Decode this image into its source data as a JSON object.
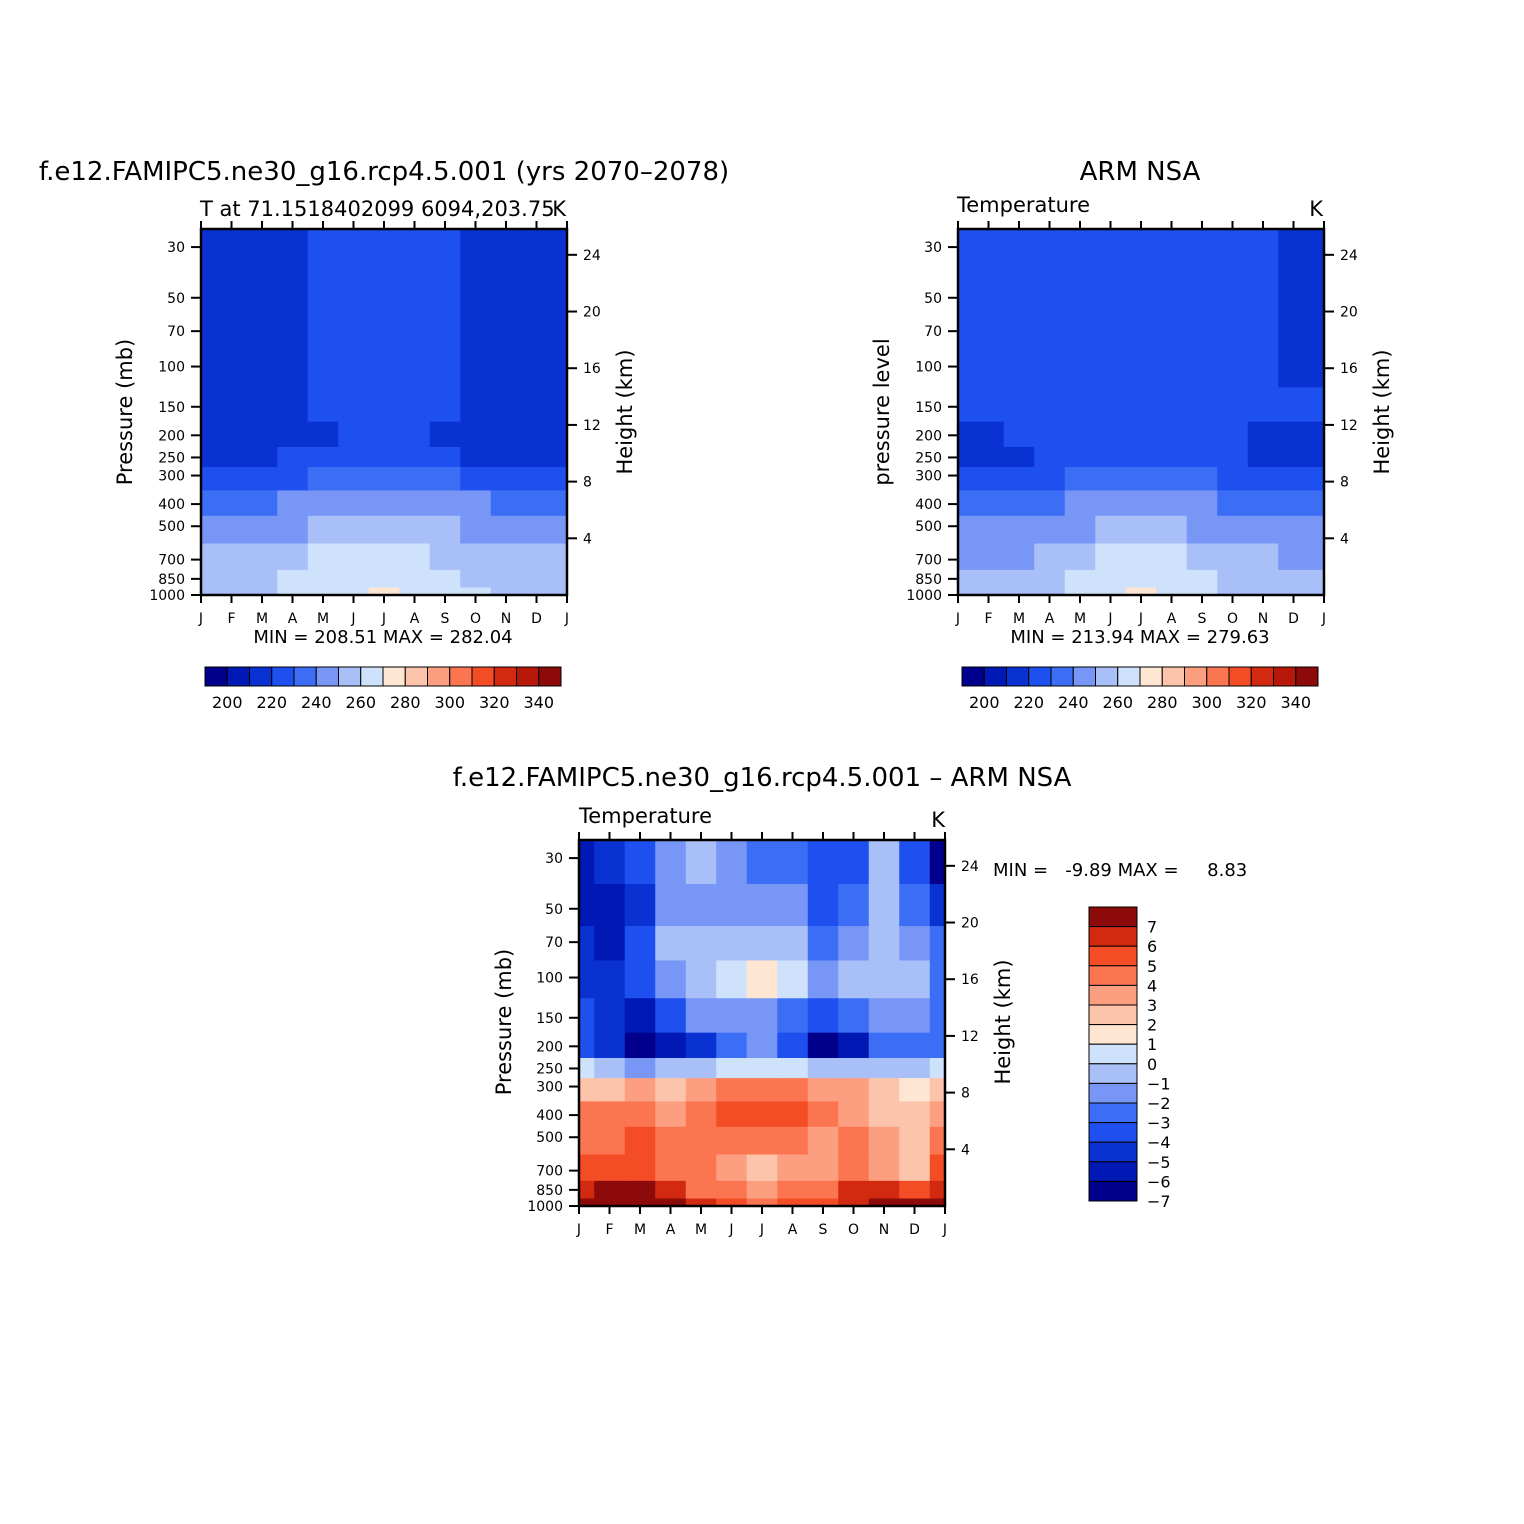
{
  "palette": {
    "temperature": [
      "#00008c",
      "#0018b4",
      "#0a32d2",
      "#1e50f0",
      "#3c6ef5",
      "#7896f5",
      "#a8bff8",
      "#cfe2fb",
      "#ffe6d2",
      "#fcc4aa",
      "#fc9f80",
      "#fb7550",
      "#f44d26",
      "#d22a10",
      "#b8180a",
      "#8c0a0a"
    ],
    "difference": [
      "#00008c",
      "#0018b4",
      "#0a32d2",
      "#1e50f0",
      "#3c6ef5",
      "#7896f5",
      "#a8bff8",
      "#cfe2fb",
      "#ffe6d2",
      "#fcc4aa",
      "#fc9f80",
      "#fb7550",
      "#f44d26",
      "#d22a10",
      "#8c0a0a"
    ]
  },
  "chart_data": [
    {
      "type": "heatmap",
      "title": "f.e12.FAMIPC5.ne30_g16.rcp4.5.001 (yrs 2070–2078)",
      "subtitle": "T at 71.1518402099 6094,203.75",
      "units": "K",
      "ylabel": "Pressure (mb)",
      "ylabel_right": "Height (km)",
      "stats_text": "MIN = 208.51 MAX = 282.04",
      "x_labels": [
        "J",
        "F",
        "M",
        "A",
        "M",
        "J",
        "J",
        "A",
        "S",
        "O",
        "N",
        "D",
        "J"
      ],
      "y_levels": [
        1000,
        850,
        700,
        500,
        400,
        300,
        250,
        200,
        150,
        100,
        70,
        50,
        30
      ],
      "y_labels": [
        "1000",
        "850",
        "700",
        "500",
        "400",
        "300",
        "250",
        "200",
        "150",
        "100",
        "70",
        "50",
        "30"
      ],
      "height_ticks": [
        "4",
        "8",
        "12",
        "16",
        "20",
        "24"
      ],
      "colorbar_labels": [
        "200",
        "220",
        "240",
        "260",
        "280",
        "300",
        "320",
        "340"
      ],
      "grid": [
        [
          257,
          258,
          259,
          262,
          266,
          268,
          270,
          268,
          264,
          260,
          258,
          257,
          257
        ],
        [
          255,
          256,
          258,
          262,
          265,
          268,
          269,
          267,
          263,
          259,
          256,
          255,
          255
        ],
        [
          251,
          252,
          254,
          258,
          261,
          263,
          264,
          262,
          259,
          255,
          252,
          251,
          251
        ],
        [
          243,
          244,
          245,
          248,
          251,
          253,
          254,
          253,
          250,
          247,
          244,
          243,
          243
        ],
        [
          236,
          237,
          238,
          240,
          242,
          245,
          246,
          245,
          243,
          240,
          238,
          237,
          236
        ],
        [
          226,
          227,
          228,
          229,
          231,
          232,
          233,
          232,
          231,
          229,
          228,
          227,
          226
        ],
        [
          219,
          219,
          219,
          220,
          222,
          224,
          226,
          224,
          221,
          219,
          219,
          219,
          219
        ],
        [
          216,
          216,
          216,
          217,
          219,
          222,
          224,
          222,
          219,
          217,
          216,
          216,
          216
        ],
        [
          216,
          216,
          216,
          218,
          222,
          225,
          226,
          225,
          221,
          217,
          216,
          216,
          216
        ],
        [
          217,
          217,
          217,
          219,
          224,
          225,
          226,
          225,
          224,
          219,
          217,
          217,
          217
        ],
        [
          217,
          217,
          217,
          219,
          224,
          225,
          226,
          225,
          223,
          219,
          217,
          217,
          216
        ],
        [
          217,
          217,
          217,
          219,
          224,
          225,
          226,
          225,
          222,
          218,
          217,
          216,
          215
        ],
        [
          217,
          217,
          217,
          219,
          223,
          224,
          224,
          223,
          222,
          219,
          217,
          215,
          212
        ]
      ]
    },
    {
      "type": "heatmap",
      "title": "ARM NSA",
      "subtitle": "Temperature",
      "units": "K",
      "ylabel": "pressure level",
      "ylabel_right": "Height (km)",
      "stats_text": "MIN = 213.94 MAX = 279.63",
      "x_labels": [
        "J",
        "F",
        "M",
        "A",
        "M",
        "J",
        "J",
        "A",
        "S",
        "O",
        "N",
        "D",
        "J"
      ],
      "y_levels": [
        1000,
        850,
        700,
        500,
        400,
        300,
        250,
        200,
        150,
        100,
        70,
        50,
        30
      ],
      "y_labels": [
        "1000",
        "850",
        "700",
        "500",
        "400",
        "300",
        "250",
        "200",
        "150",
        "100",
        "70",
        "50",
        "30"
      ],
      "height_ticks": [
        "4",
        "8",
        "12",
        "16",
        "20",
        "24"
      ],
      "colorbar_labels": [
        "200",
        "220",
        "240",
        "260",
        "280",
        "300",
        "320",
        "340"
      ],
      "grid": [
        [
          252,
          252,
          253,
          256,
          262,
          268,
          270,
          268,
          264,
          258,
          254,
          252,
          252
        ],
        [
          250,
          250,
          252,
          256,
          261,
          266,
          268,
          266,
          262,
          257,
          253,
          251,
          250
        ],
        [
          247,
          247,
          249,
          253,
          257,
          261,
          262,
          261,
          258,
          254,
          250,
          248,
          247
        ],
        [
          240,
          240,
          241,
          245,
          248,
          251,
          252,
          251,
          249,
          245,
          242,
          240,
          240
        ],
        [
          234,
          234,
          235,
          238,
          241,
          244,
          245,
          244,
          241,
          238,
          236,
          234,
          234
        ],
        [
          225,
          225,
          226,
          228,
          230,
          232,
          233,
          232,
          230,
          228,
          226,
          225,
          225
        ],
        [
          219,
          218,
          219,
          221,
          224,
          226,
          227,
          226,
          223,
          221,
          219,
          219,
          219
        ],
        [
          219,
          219,
          221,
          223,
          225,
          227,
          227,
          227,
          225,
          221,
          219,
          219,
          219
        ],
        [
          221,
          222,
          223,
          224,
          225,
          226,
          226,
          226,
          224,
          221,
          220,
          220,
          220
        ],
        [
          222,
          223,
          224,
          225,
          226,
          227,
          227,
          226,
          224,
          221,
          220,
          219,
          219
        ],
        [
          223,
          224,
          225,
          226,
          227,
          228,
          228,
          227,
          225,
          222,
          220,
          219,
          219
        ],
        [
          224,
          225,
          226,
          227,
          228,
          229,
          229,
          228,
          226,
          222,
          220,
          219,
          219
        ],
        [
          225,
          225,
          226,
          227,
          228,
          229,
          229,
          229,
          227,
          223,
          220,
          219,
          218
        ]
      ]
    },
    {
      "type": "heatmap",
      "title": "f.e12.FAMIPC5.ne30_g16.rcp4.5.001 – ARM NSA",
      "subtitle": "Temperature",
      "units": "K",
      "ylabel": "Pressure (mb)",
      "ylabel_right": "Height (km)",
      "stats_text": "MIN =   -9.89 MAX =     8.83",
      "x_labels": [
        "J",
        "F",
        "M",
        "A",
        "M",
        "J",
        "J",
        "A",
        "S",
        "O",
        "N",
        "D",
        "J"
      ],
      "y_levels": [
        1000,
        850,
        700,
        500,
        400,
        300,
        250,
        200,
        150,
        100,
        70,
        50,
        30
      ],
      "y_labels": [
        "1000",
        "850",
        "700",
        "500",
        "400",
        "300",
        "250",
        "200",
        "150",
        "100",
        "70",
        "50",
        "30"
      ],
      "height_ticks": [
        "4",
        "8",
        "12",
        "16",
        "20",
        "24"
      ],
      "colorbar_labels": [
        "7",
        "6",
        "5",
        "4",
        "3",
        "2",
        "1",
        "0",
        "−1",
        "−2",
        "−3",
        "−4",
        "−5",
        "−6",
        "−7"
      ],
      "grid": [
        [
          5.5,
          6.5,
          7.5,
          5.5,
          4.5,
          3.5,
          3.2,
          3.5,
          4.0,
          5.0,
          7.5,
          8.5,
          6.0
        ],
        [
          5.0,
          5.5,
          6.5,
          4.5,
          3.0,
          2.5,
          2.0,
          2.5,
          3.0,
          4.5,
          5.0,
          3.5,
          5.0
        ],
        [
          4.0,
          3.8,
          4.0,
          2.5,
          2.5,
          1.5,
          1.0,
          1.5,
          2.0,
          3.0,
          2.0,
          0.5,
          3.5
        ],
        [
          3.0,
          3.0,
          3.5,
          2.5,
          2.5,
          2.5,
          2.5,
          2.5,
          2.0,
          2.5,
          1.5,
          0.5,
          2.5
        ],
        [
          2.5,
          2.5,
          2.5,
          1.5,
          3.0,
          3.5,
          4.0,
          3.5,
          2.5,
          2.0,
          1.0,
          0.5,
          2.0
        ],
        [
          1.0,
          1.0,
          1.5,
          0.5,
          1.5,
          2.5,
          3.0,
          2.5,
          2.0,
          1.5,
          0.5,
          0.0,
          0.5
        ],
        [
          -1.5,
          -2.0,
          -3.0,
          -2.5,
          -2.0,
          -1.5,
          -1.0,
          -1.5,
          -2.0,
          -2.0,
          -2.5,
          -2.0,
          -1.5
        ],
        [
          -5.5,
          -6.0,
          -8.0,
          -7.5,
          -6.5,
          -4.5,
          -3.0,
          -5.5,
          -8.0,
          -7.0,
          -4.5,
          -4.0,
          -4.0
        ],
        [
          -5.5,
          -6.5,
          -7.0,
          -5.5,
          -3.5,
          -3.0,
          -3.0,
          -4.0,
          -5.0,
          -4.0,
          -3.5,
          -3.5,
          -4.0
        ],
        [
          -6.0,
          -6.5,
          -5.0,
          -3.0,
          -2.0,
          -1.5,
          -0.5,
          -1.5,
          -3.5,
          -2.5,
          -2.0,
          -2.5,
          -4.0
        ],
        [
          -6.5,
          -7.0,
          -5.5,
          -2.5,
          -2.0,
          -2.0,
          -2.0,
          -2.0,
          -4.5,
          -3.0,
          -2.5,
          -3.0,
          -4.5
        ],
        [
          -7.0,
          -7.0,
          -6.0,
          -3.0,
          -3.0,
          -3.0,
          -3.0,
          -3.5,
          -5.0,
          -4.5,
          -2.5,
          -4.5,
          -6.0
        ],
        [
          -7.5,
          -6.5,
          -5.5,
          -3.5,
          -2.5,
          -3.5,
          -4.0,
          -4.5,
          -5.5,
          -5.0,
          -2.5,
          -5.5,
          -8.0
        ]
      ]
    }
  ]
}
